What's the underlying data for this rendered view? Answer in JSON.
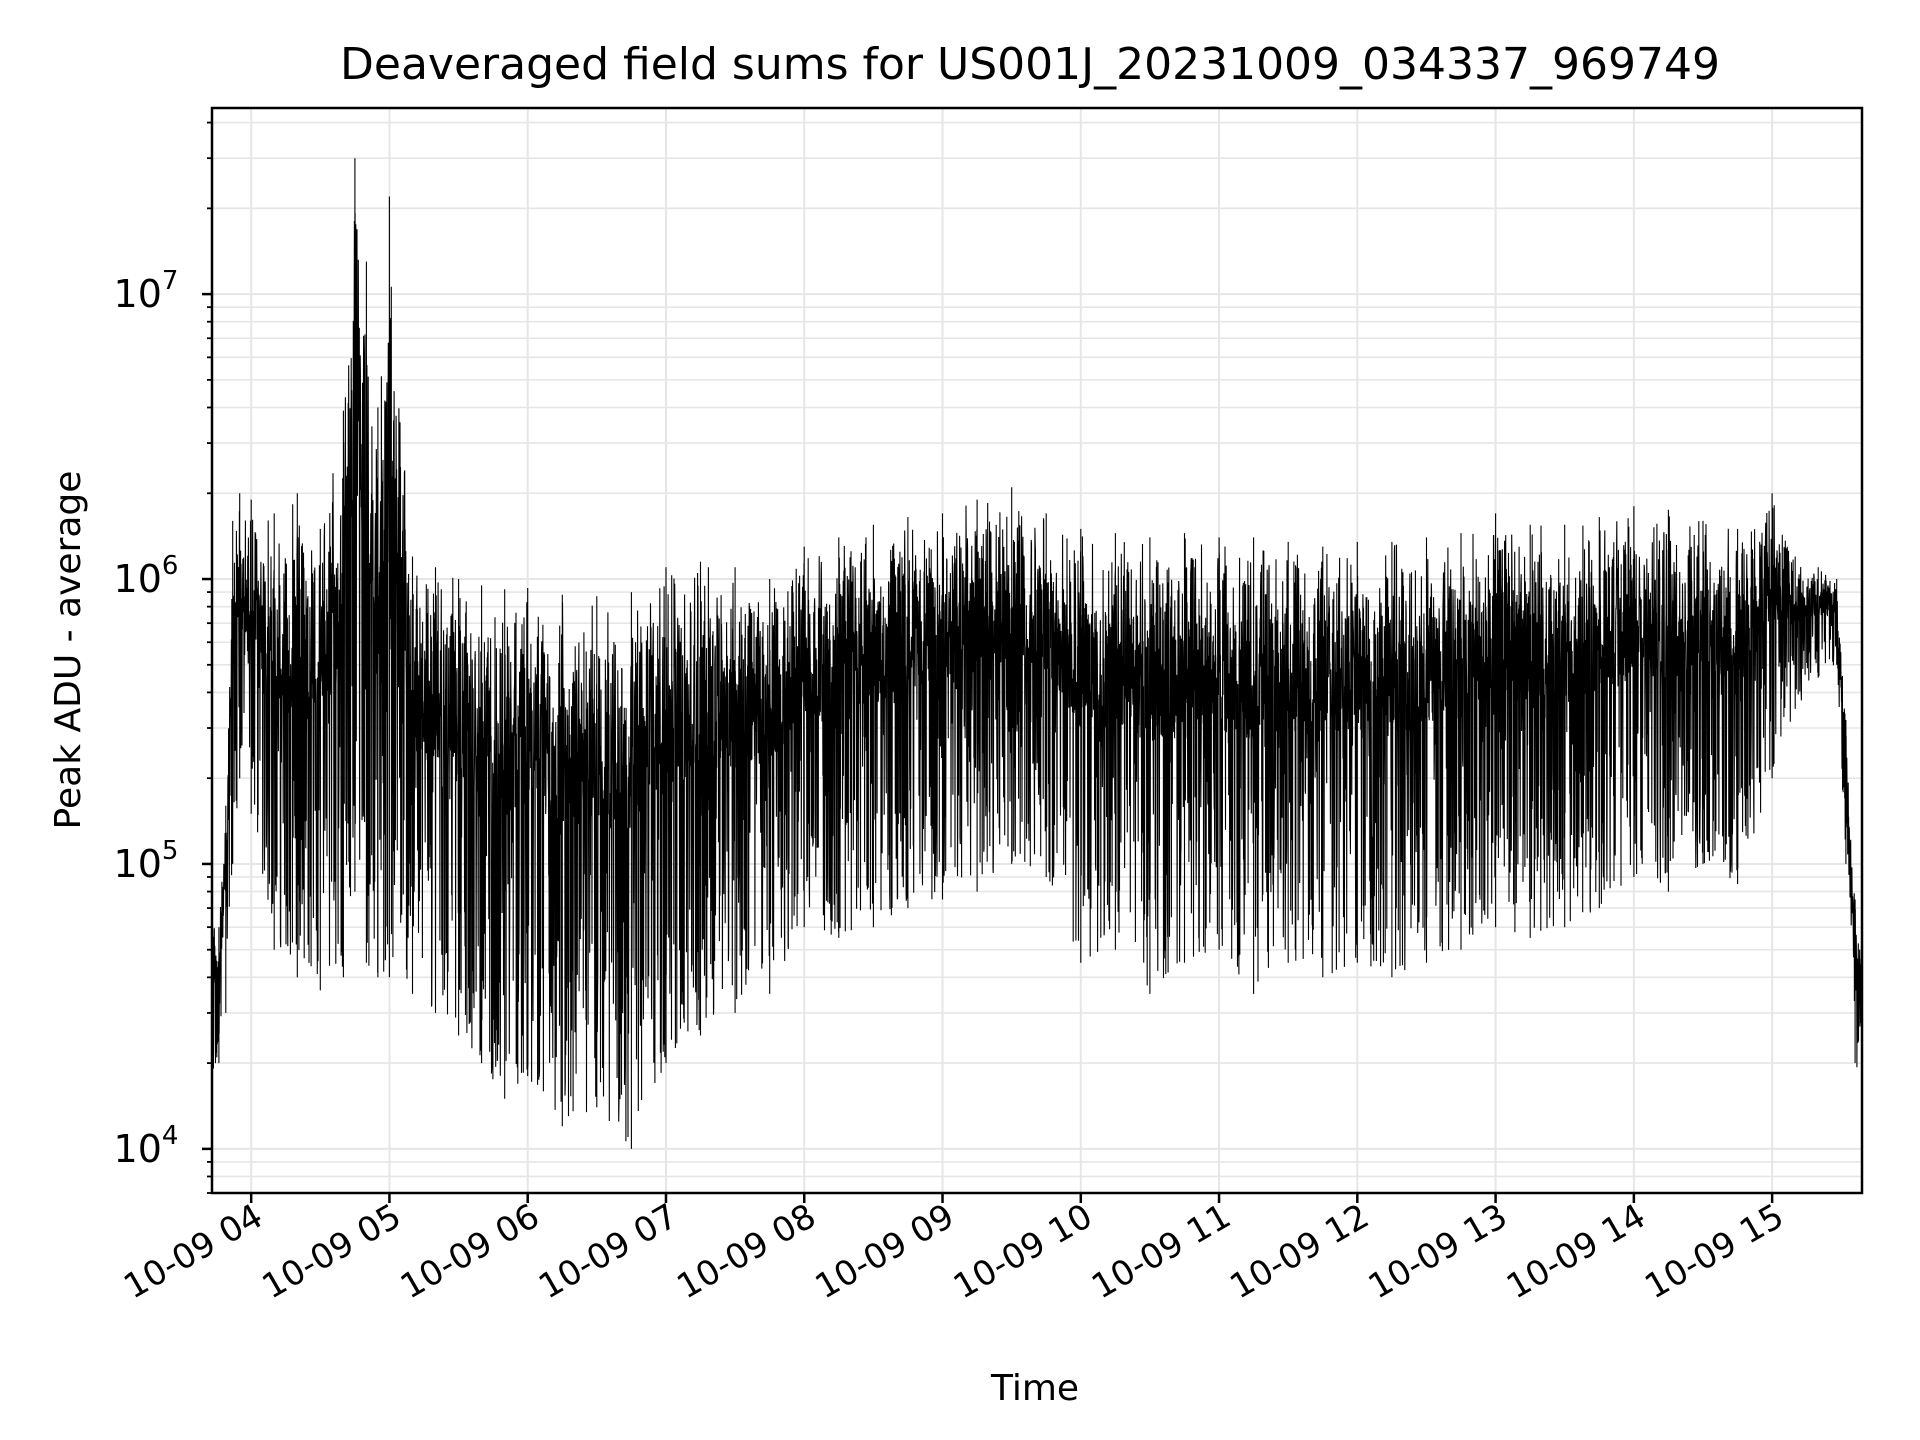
{
  "chart_data": {
    "type": "line",
    "title": "Deaveraged field sums for US001J_20231009_034337_969749",
    "xlabel": "Time",
    "ylabel": "Peak ADU - average",
    "yscale": "log",
    "ylim": [
      7000,
      45000000
    ],
    "xlim": [
      "2023-10-09 03:43",
      "2023-10-09 15:39"
    ],
    "grid": true,
    "line_color": "#000000",
    "grid_color": "#e6e6e6",
    "x_ticks": [
      "10-09 04",
      "10-09 05",
      "10-09 06",
      "10-09 07",
      "10-09 08",
      "10-09 09",
      "10-09 10",
      "10-09 11",
      "10-09 12",
      "10-09 13",
      "10-09 14",
      "10-09 15"
    ],
    "y_ticks": [
      {
        "base": "10",
        "exp": "4"
      },
      {
        "base": "10",
        "exp": "5"
      },
      {
        "base": "10",
        "exp": "6"
      },
      {
        "base": "10",
        "exp": "7"
      }
    ],
    "series": [
      {
        "x": [
          "2023-10-09 03:43",
          "2023-10-09 03:46",
          "2023-10-09 03:49",
          "2023-10-09 03:52",
          "2023-10-09 03:55",
          "2023-10-09 04:00",
          "2023-10-09 04:10",
          "2023-10-09 04:20",
          "2023-10-09 04:30",
          "2023-10-09 04:40",
          "2023-10-09 04:45",
          "2023-10-09 04:50",
          "2023-10-09 04:55",
          "2023-10-09 05:00",
          "2023-10-09 05:10",
          "2023-10-09 05:20",
          "2023-10-09 05:30",
          "2023-10-09 05:40",
          "2023-10-09 05:50",
          "2023-10-09 06:00",
          "2023-10-09 06:15",
          "2023-10-09 06:30",
          "2023-10-09 06:45",
          "2023-10-09 07:00",
          "2023-10-09 07:15",
          "2023-10-09 07:30",
          "2023-10-09 07:45",
          "2023-10-09 08:00",
          "2023-10-09 08:15",
          "2023-10-09 08:30",
          "2023-10-09 08:45",
          "2023-10-09 09:00",
          "2023-10-09 09:15",
          "2023-10-09 09:30",
          "2023-10-09 09:45",
          "2023-10-09 10:00",
          "2023-10-09 10:15",
          "2023-10-09 10:30",
          "2023-10-09 10:45",
          "2023-10-09 11:00",
          "2023-10-09 11:15",
          "2023-10-09 11:30",
          "2023-10-09 11:45",
          "2023-10-09 12:00",
          "2023-10-09 12:15",
          "2023-10-09 12:30",
          "2023-10-09 12:45",
          "2023-10-09 13:00",
          "2023-10-09 13:15",
          "2023-10-09 13:30",
          "2023-10-09 13:45",
          "2023-10-09 14:00",
          "2023-10-09 14:15",
          "2023-10-09 14:30",
          "2023-10-09 14:45",
          "2023-10-09 15:00",
          "2023-10-09 15:10",
          "2023-10-09 15:20",
          "2023-10-09 15:28",
          "2023-10-09 15:32",
          "2023-10-09 15:36",
          "2023-10-09 15:39"
        ],
        "y_high": [
          80000,
          60000,
          160000,
          1600000,
          2000000,
          1900000,
          1700000,
          2000000,
          1500000,
          3900000,
          30000000,
          13000000,
          4000000,
          22000000,
          1200000,
          1100000,
          1000000,
          950000,
          920000,
          930000,
          880000,
          870000,
          900000,
          1100000,
          1150000,
          1100000,
          1000000,
          1300000,
          1400000,
          1550000,
          1650000,
          1700000,
          1900000,
          2100000,
          1700000,
          1500000,
          1450000,
          1400000,
          1450000,
          1400000,
          1400000,
          1350000,
          1300000,
          1350000,
          1350000,
          1400000,
          1450000,
          1700000,
          1550000,
          1550000,
          1650000,
          1800000,
          1750000,
          1600000,
          1500000,
          2000000,
          1200000,
          1100000,
          1000000,
          320000,
          75000,
          50000
        ],
        "y_low": [
          15000,
          20000,
          30000,
          100000,
          200000,
          150000,
          50000,
          40000,
          36000,
          40000,
          80000,
          45000,
          40000,
          40000,
          35000,
          30000,
          25000,
          20000,
          15000,
          18000,
          12000,
          14000,
          10000,
          20000,
          25000,
          30000,
          35000,
          60000,
          55000,
          60000,
          70000,
          75000,
          80000,
          100000,
          90000,
          45000,
          50000,
          35000,
          45000,
          50000,
          35000,
          45000,
          40000,
          45000,
          40000,
          45000,
          50000,
          60000,
          55000,
          60000,
          70000,
          90000,
          80000,
          100000,
          85000,
          200000,
          350000,
          450000,
          500000,
          100000,
          20000,
          17000
        ]
      }
    ]
  }
}
